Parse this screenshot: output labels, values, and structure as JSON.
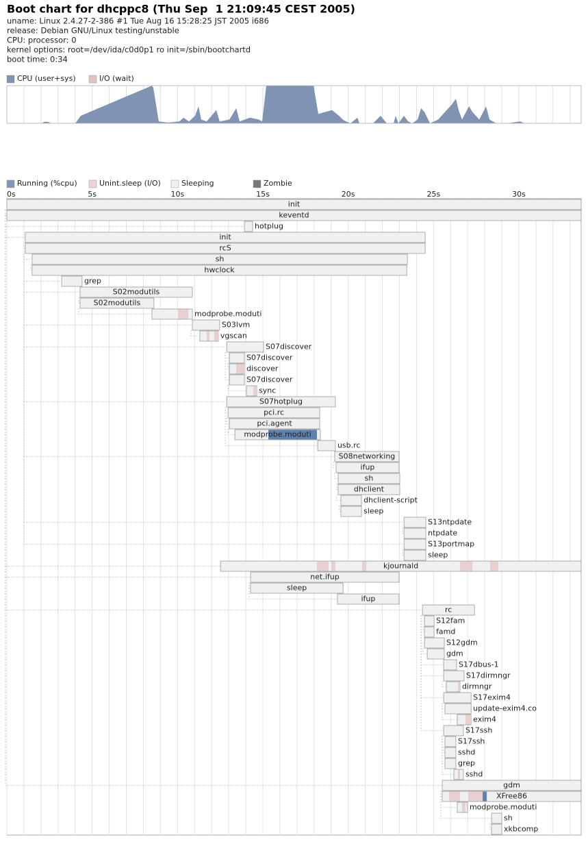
{
  "header": {
    "title": "Boot chart for dhcppc8 (Thu Sep  1 21:09:45 CEST 2005)",
    "lines": [
      "uname: Linux 2.4.27-2-386 #1 Tue Aug 16 15:28:25 JST 2005 i686",
      "release: Debian GNU/Linux testing/unstable",
      "CPU: processor: 0",
      "kernel options: root=/dev/ida/c0d0p1 ro init=/sbin/bootchartd",
      "boot time: 0:34"
    ]
  },
  "chart_data": [
    {
      "type": "area",
      "color": "#8193b3",
      "legend": [
        {
          "name": "CPU (user+sys)",
          "color": "#8193b3"
        },
        {
          "name": "I/O (wait)",
          "color": "#e3c1c1"
        }
      ],
      "xlim": [
        0,
        33.65
      ],
      "ylim": [
        0,
        100
      ],
      "grid": true,
      "grid_step": 1,
      "x": [
        0,
        2.01,
        2.21,
        2.41,
        2.61,
        4.01,
        4.33,
        8.5,
        8.58,
        8.9,
        9.43,
        10.11,
        10.35,
        10.67,
        11.03,
        11.23,
        11.39,
        11.71,
        12.27,
        12.47,
        13.04,
        13.44,
        13.64,
        14.24,
        14.76,
        14.96,
        15.2,
        17.97,
        18.25,
        18.65,
        19.05,
        19.46,
        19.74,
        20.14,
        20.54,
        20.66,
        21.46,
        21.9,
        22.26,
        22.66,
        22.78,
        22.94,
        23.27,
        23.51,
        23.75,
        24.07,
        24.27,
        24.47,
        24.79,
        25.27,
        25.67,
        26.07,
        26.31,
        26.47,
        26.67,
        27.08,
        27.28,
        27.68,
        28.08,
        28.28,
        28.68,
        29.28,
        30.08,
        30.32,
        33.65
      ],
      "values": [
        0,
        0,
        4,
        4,
        0,
        0,
        20,
        100,
        95,
        5,
        2,
        5,
        15,
        5,
        20,
        45,
        10,
        5,
        35,
        5,
        10,
        40,
        5,
        15,
        10,
        5,
        100,
        100,
        25,
        30,
        35,
        20,
        8,
        0,
        15,
        0,
        0,
        20,
        0,
        0,
        20,
        0,
        20,
        5,
        0,
        10,
        40,
        30,
        0,
        10,
        30,
        50,
        65,
        35,
        10,
        45,
        30,
        10,
        45,
        10,
        0,
        0,
        5,
        0,
        0
      ]
    },
    {
      "type": "gantt",
      "legend": [
        {
          "name": "Running (%cpu)",
          "color": "#8196b6"
        },
        {
          "name": "Unint.sleep (I/O)",
          "color": "#ead3d3"
        },
        {
          "name": "Sleeping",
          "color": "#f0f0f0"
        },
        {
          "name": "Zombie",
          "color": "#777777"
        }
      ],
      "xlim": [
        0,
        33.65
      ],
      "grid": true,
      "grid_step": 1,
      "xticks": [
        {
          "value": 0,
          "label": "0s"
        },
        {
          "value": 5,
          "label": "5s"
        },
        {
          "value": 10,
          "label": "10s"
        },
        {
          "value": 15,
          "label": "15s"
        },
        {
          "value": 20,
          "label": "20s"
        },
        {
          "value": 25,
          "label": "25s"
        },
        {
          "value": 30,
          "label": "30s"
        }
      ],
      "processes": [
        {
          "name": "init",
          "start": 0,
          "end": 33.65,
          "parent": null
        },
        {
          "name": "keventd",
          "start": 0,
          "end": 33.65,
          "parent": 0
        },
        {
          "name": "hotplug",
          "start": 13.92,
          "end": 14.4,
          "parent": 1
        },
        {
          "name": "init",
          "start": 1.08,
          "end": 24.51,
          "parent": 0
        },
        {
          "name": "rcS",
          "start": 1.08,
          "end": 24.51,
          "parent": 3
        },
        {
          "name": "sh",
          "start": 1.48,
          "end": 23.47,
          "parent": 4
        },
        {
          "name": "hwclock",
          "start": 1.48,
          "end": 23.43,
          "parent": 5
        },
        {
          "name": "grep",
          "start": 3.21,
          "end": 4.41,
          "parent": 4
        },
        {
          "name": "S02modutils",
          "start": 4.29,
          "end": 10.87,
          "parent": 4
        },
        {
          "name": "S02modutils",
          "start": 4.29,
          "end": 8.62,
          "parent": 8
        },
        {
          "name": "modprobe.moduti",
          "start": 8.5,
          "end": 10.87,
          "parent": 9,
          "io": [
            [
              10.03,
              10.63
            ]
          ]
        },
        {
          "name": "S03lvm",
          "start": 10.87,
          "end": 12.47,
          "parent": 4
        },
        {
          "name": "vgscan",
          "start": 11.31,
          "end": 12.39,
          "parent": 11,
          "io": [
            [
              11.71,
              11.87
            ],
            [
              12.15,
              12.39
            ]
          ]
        },
        {
          "name": "S07discover",
          "start": 12.88,
          "end": 15.04,
          "parent": 4
        },
        {
          "name": "S07discover",
          "start": 13.04,
          "end": 13.92,
          "parent": 13
        },
        {
          "name": "discover",
          "start": 13.04,
          "end": 13.92,
          "parent": 14,
          "io": [
            [
              13.44,
              13.92
            ]
          ]
        },
        {
          "name": "S07discover",
          "start": 13.04,
          "end": 13.92,
          "parent": 13
        },
        {
          "name": "sync",
          "start": 14.04,
          "end": 14.64,
          "parent": 16,
          "io": [
            [
              14.44,
              14.64
            ]
          ]
        },
        {
          "name": "S07hotplug",
          "start": 12.88,
          "end": 19.25,
          "parent": 4
        },
        {
          "name": "pci.rc",
          "start": 12.96,
          "end": 18.33,
          "parent": 18
        },
        {
          "name": "pci.agent",
          "start": 13.04,
          "end": 18.33,
          "parent": 19
        },
        {
          "name": "modprobe.moduti",
          "start": 13.36,
          "end": 18.37,
          "parent": 20,
          "running": [
            [
              15.32,
              18.17
            ]
          ]
        },
        {
          "name": "usb.rc",
          "start": 18.21,
          "end": 19.25,
          "parent": 18
        },
        {
          "name": "S08networking",
          "start": 19.21,
          "end": 22.98,
          "parent": 4
        },
        {
          "name": "ifup",
          "start": 19.29,
          "end": 22.98,
          "parent": 23
        },
        {
          "name": "sh",
          "start": 19.41,
          "end": 23.02,
          "parent": 24
        },
        {
          "name": "dhclient",
          "start": 19.41,
          "end": 23.02,
          "parent": 25
        },
        {
          "name": "dhclient-script",
          "start": 19.57,
          "end": 20.78,
          "parent": 26
        },
        {
          "name": "sleep",
          "start": 19.57,
          "end": 20.78,
          "parent": 27
        },
        {
          "name": "S13ntpdate",
          "start": 23.27,
          "end": 24.55,
          "parent": 4
        },
        {
          "name": "ntpdate",
          "start": 23.27,
          "end": 24.55,
          "parent": 29
        },
        {
          "name": "S13portmap",
          "start": 23.27,
          "end": 24.55,
          "parent": 4
        },
        {
          "name": "sleep",
          "start": 23.27,
          "end": 24.55,
          "parent": 31
        },
        {
          "name": "kjournald",
          "start": 12.52,
          "end": 33.65,
          "parent": 0,
          "io": [
            [
              18.17,
              18.85
            ],
            [
              19.01,
              19.25
            ],
            [
              20.82,
              21.06
            ],
            [
              26.55,
              27.28
            ],
            [
              28.32,
              28.8
            ]
          ]
        },
        {
          "name": "net.ifup",
          "start": 14.28,
          "end": 22.98,
          "parent": 0
        },
        {
          "name": "sleep",
          "start": 14.28,
          "end": 19.7,
          "parent": 34
        },
        {
          "name": "ifup",
          "start": 19.37,
          "end": 22.98,
          "parent": 34
        },
        {
          "name": "rc",
          "start": 24.35,
          "end": 27.4,
          "parent": 0
        },
        {
          "name": "S12fam",
          "start": 24.47,
          "end": 25.03,
          "parent": 37
        },
        {
          "name": "famd",
          "start": 24.47,
          "end": 25.03,
          "parent": 38
        },
        {
          "name": "S12gdm",
          "start": 24.47,
          "end": 25.63,
          "parent": 37
        },
        {
          "name": "gdm",
          "start": 24.63,
          "end": 25.63,
          "parent": 40
        },
        {
          "name": "S17dbus-1",
          "start": 25.59,
          "end": 26.35,
          "parent": 37
        },
        {
          "name": "S17dirmngr",
          "start": 25.59,
          "end": 26.79,
          "parent": 37
        },
        {
          "name": "dirmngr",
          "start": 25.75,
          "end": 26.55,
          "parent": 43,
          "io": [
            [
              26.43,
              26.55
            ]
          ]
        },
        {
          "name": "S17exim4",
          "start": 25.59,
          "end": 27.2,
          "parent": 37
        },
        {
          "name": "update-exim4.co",
          "start": 25.67,
          "end": 27.2,
          "parent": 45
        },
        {
          "name": "exim4",
          "start": 26.39,
          "end": 27.2,
          "parent": 45,
          "io": [
            [
              26.87,
              27.2
            ]
          ]
        },
        {
          "name": "S17ssh",
          "start": 25.59,
          "end": 26.75,
          "parent": 37
        },
        {
          "name": "S17ssh",
          "start": 25.67,
          "end": 26.31,
          "parent": 48
        },
        {
          "name": "sshd",
          "start": 25.67,
          "end": 26.31,
          "parent": 49
        },
        {
          "name": "grep",
          "start": 25.67,
          "end": 26.31,
          "parent": 48
        },
        {
          "name": "sshd",
          "start": 26.19,
          "end": 26.75,
          "parent": 48,
          "io": [
            [
              26.43,
              26.55
            ]
          ]
        },
        {
          "name": "gdm",
          "start": 25.51,
          "end": 33.65,
          "parent": 0
        },
        {
          "name": "XFree86",
          "start": 25.51,
          "end": 33.65,
          "parent": 53,
          "io": [
            [
              25.91,
              26.55
            ],
            [
              27.03,
              27.88
            ]
          ],
          "running": [
            [
              27.88,
              28.12
            ]
          ]
        },
        {
          "name": "modprobe.moduti",
          "start": 26.39,
          "end": 26.99,
          "parent": 53,
          "io": [
            [
              26.67,
              26.87
            ]
          ]
        },
        {
          "name": "sh",
          "start": 28.4,
          "end": 29.0,
          "parent": 53
        },
        {
          "name": "xkbcomp",
          "start": 28.4,
          "end": 29.0,
          "parent": 56
        }
      ]
    }
  ]
}
